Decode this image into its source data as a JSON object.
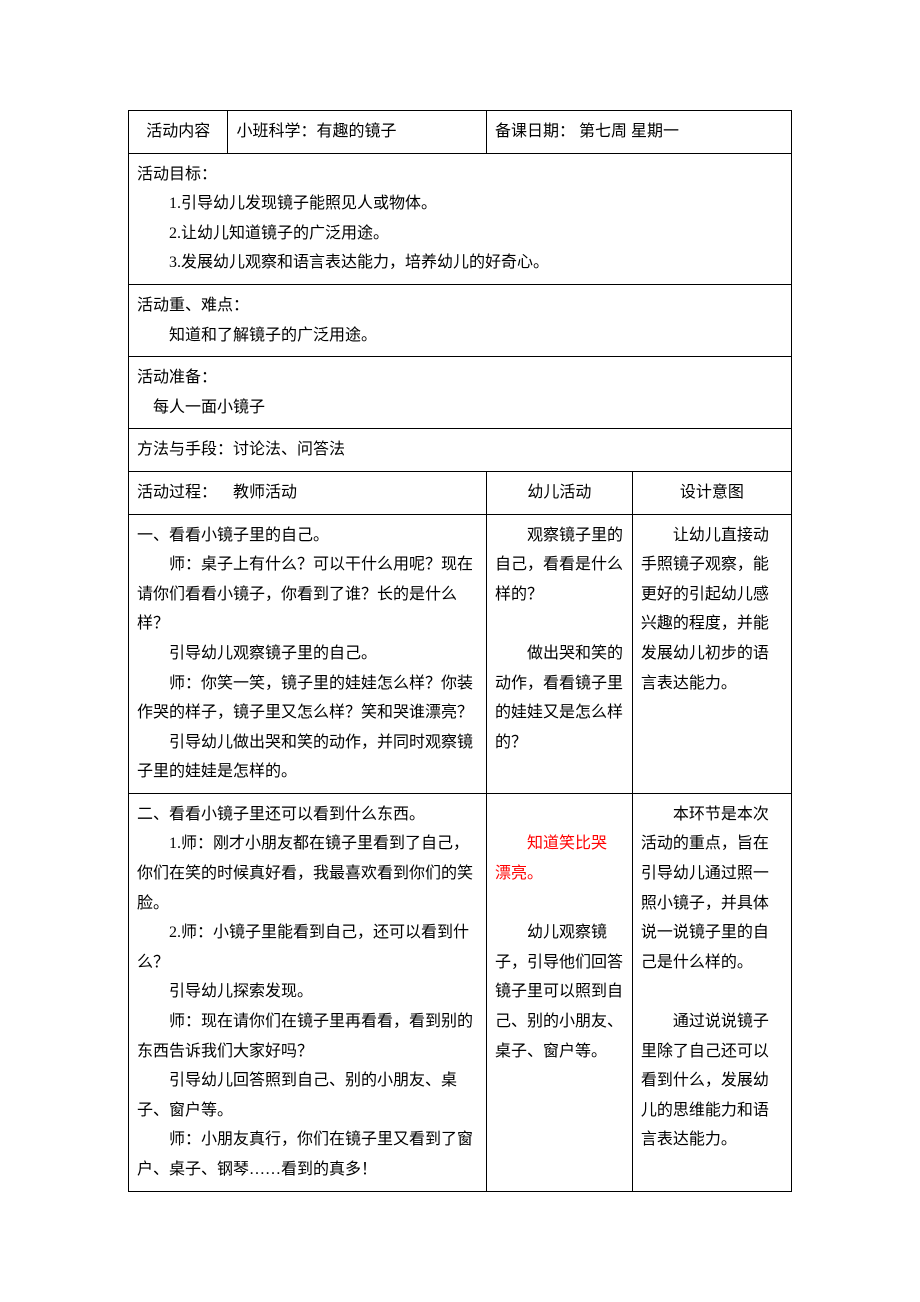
{
  "row1": {
    "label": "活动内容",
    "title": "小班科学：有趣的镜子",
    "dateLabel": "备课日期：",
    "dateValue": "第七周 星期一"
  },
  "goals": {
    "heading": "活动目标：",
    "g1": "1.引导幼儿发现镜子能照见人或物体。",
    "g2": "2.让幼儿知道镜子的广泛用途。",
    "g3": "3.发展幼儿观察和语言表达能力，培养幼儿的好奇心。"
  },
  "keypoint": {
    "heading": "活动重、难点：",
    "text": "知道和了解镜子的广泛用途。"
  },
  "prep": {
    "heading": "活动准备：",
    "text": "每人一面小镜子"
  },
  "method": {
    "text": "方法与手段：讨论法、问答法"
  },
  "procHeader": {
    "left": "活动过程： 教师活动",
    "mid": "幼儿活动",
    "right": "设计意图"
  },
  "block1": {
    "teacher": {
      "h": "一、看看小镜子里的自己。",
      "p1": "师：桌子上有什么？可以干什么用呢？现在请你们看看小镜子，你看到了谁？长的是什么样？",
      "p2": "引导幼儿观察镜子里的自己。",
      "p3": "师：你笑一笑，镜子里的娃娃怎么样？你装作哭的样子，镜子里又怎么样？笑和哭谁漂亮？",
      "p4": "引导幼儿做出哭和笑的动作，并同时观察镜子里的娃娃是怎样的。"
    },
    "child": {
      "c1": "观察镜子里的自己，看看是什么样的？",
      "c2": "做出哭和笑的动作，看看镜子里的娃娃又是怎么样的？"
    },
    "intent": {
      "d1": "让幼儿直接动手照镜子观察，能更好的引起幼儿感兴趣的程度，并能发展幼儿初步的语言表达能力。"
    }
  },
  "block2": {
    "teacher": {
      "h": "二、看看小镜子里还可以看到什么东西。",
      "p1": "1.师：刚才小朋友都在镜子里看到了自己，你们在笑的时候真好看，我最喜欢看到你们的笑脸。",
      "p2": "2.师：小镜子里能看到自己，还可以看到什么？",
      "p3": "引导幼儿探索发现。",
      "p4": "师：现在请你们在镜子里再看看，看到别的东西告诉我们大家好吗？",
      "p5": "引导幼儿回答照到自己、别的小朋友、桌子、窗户等。",
      "p6": "师：小朋友真行，你们在镜子里又看到了窗户、桌子、钢琴……看到的真多！"
    },
    "child": {
      "c1a": "知道笑比哭",
      "c1b": "漂亮。",
      "c2": "幼儿观察镜子，引导他们回答镜子里可以照到自己、别的小朋友、桌子、窗户等。"
    },
    "intent": {
      "d1": "本环节是本次活动的重点，旨在引导幼儿通过照一照小镜子，并具体说一说镜子里的自己是什么样的。",
      "d2": "通过说说镜子里除了自己还可以看到什么，发展幼儿的思维能力和语言表达能力。"
    }
  }
}
